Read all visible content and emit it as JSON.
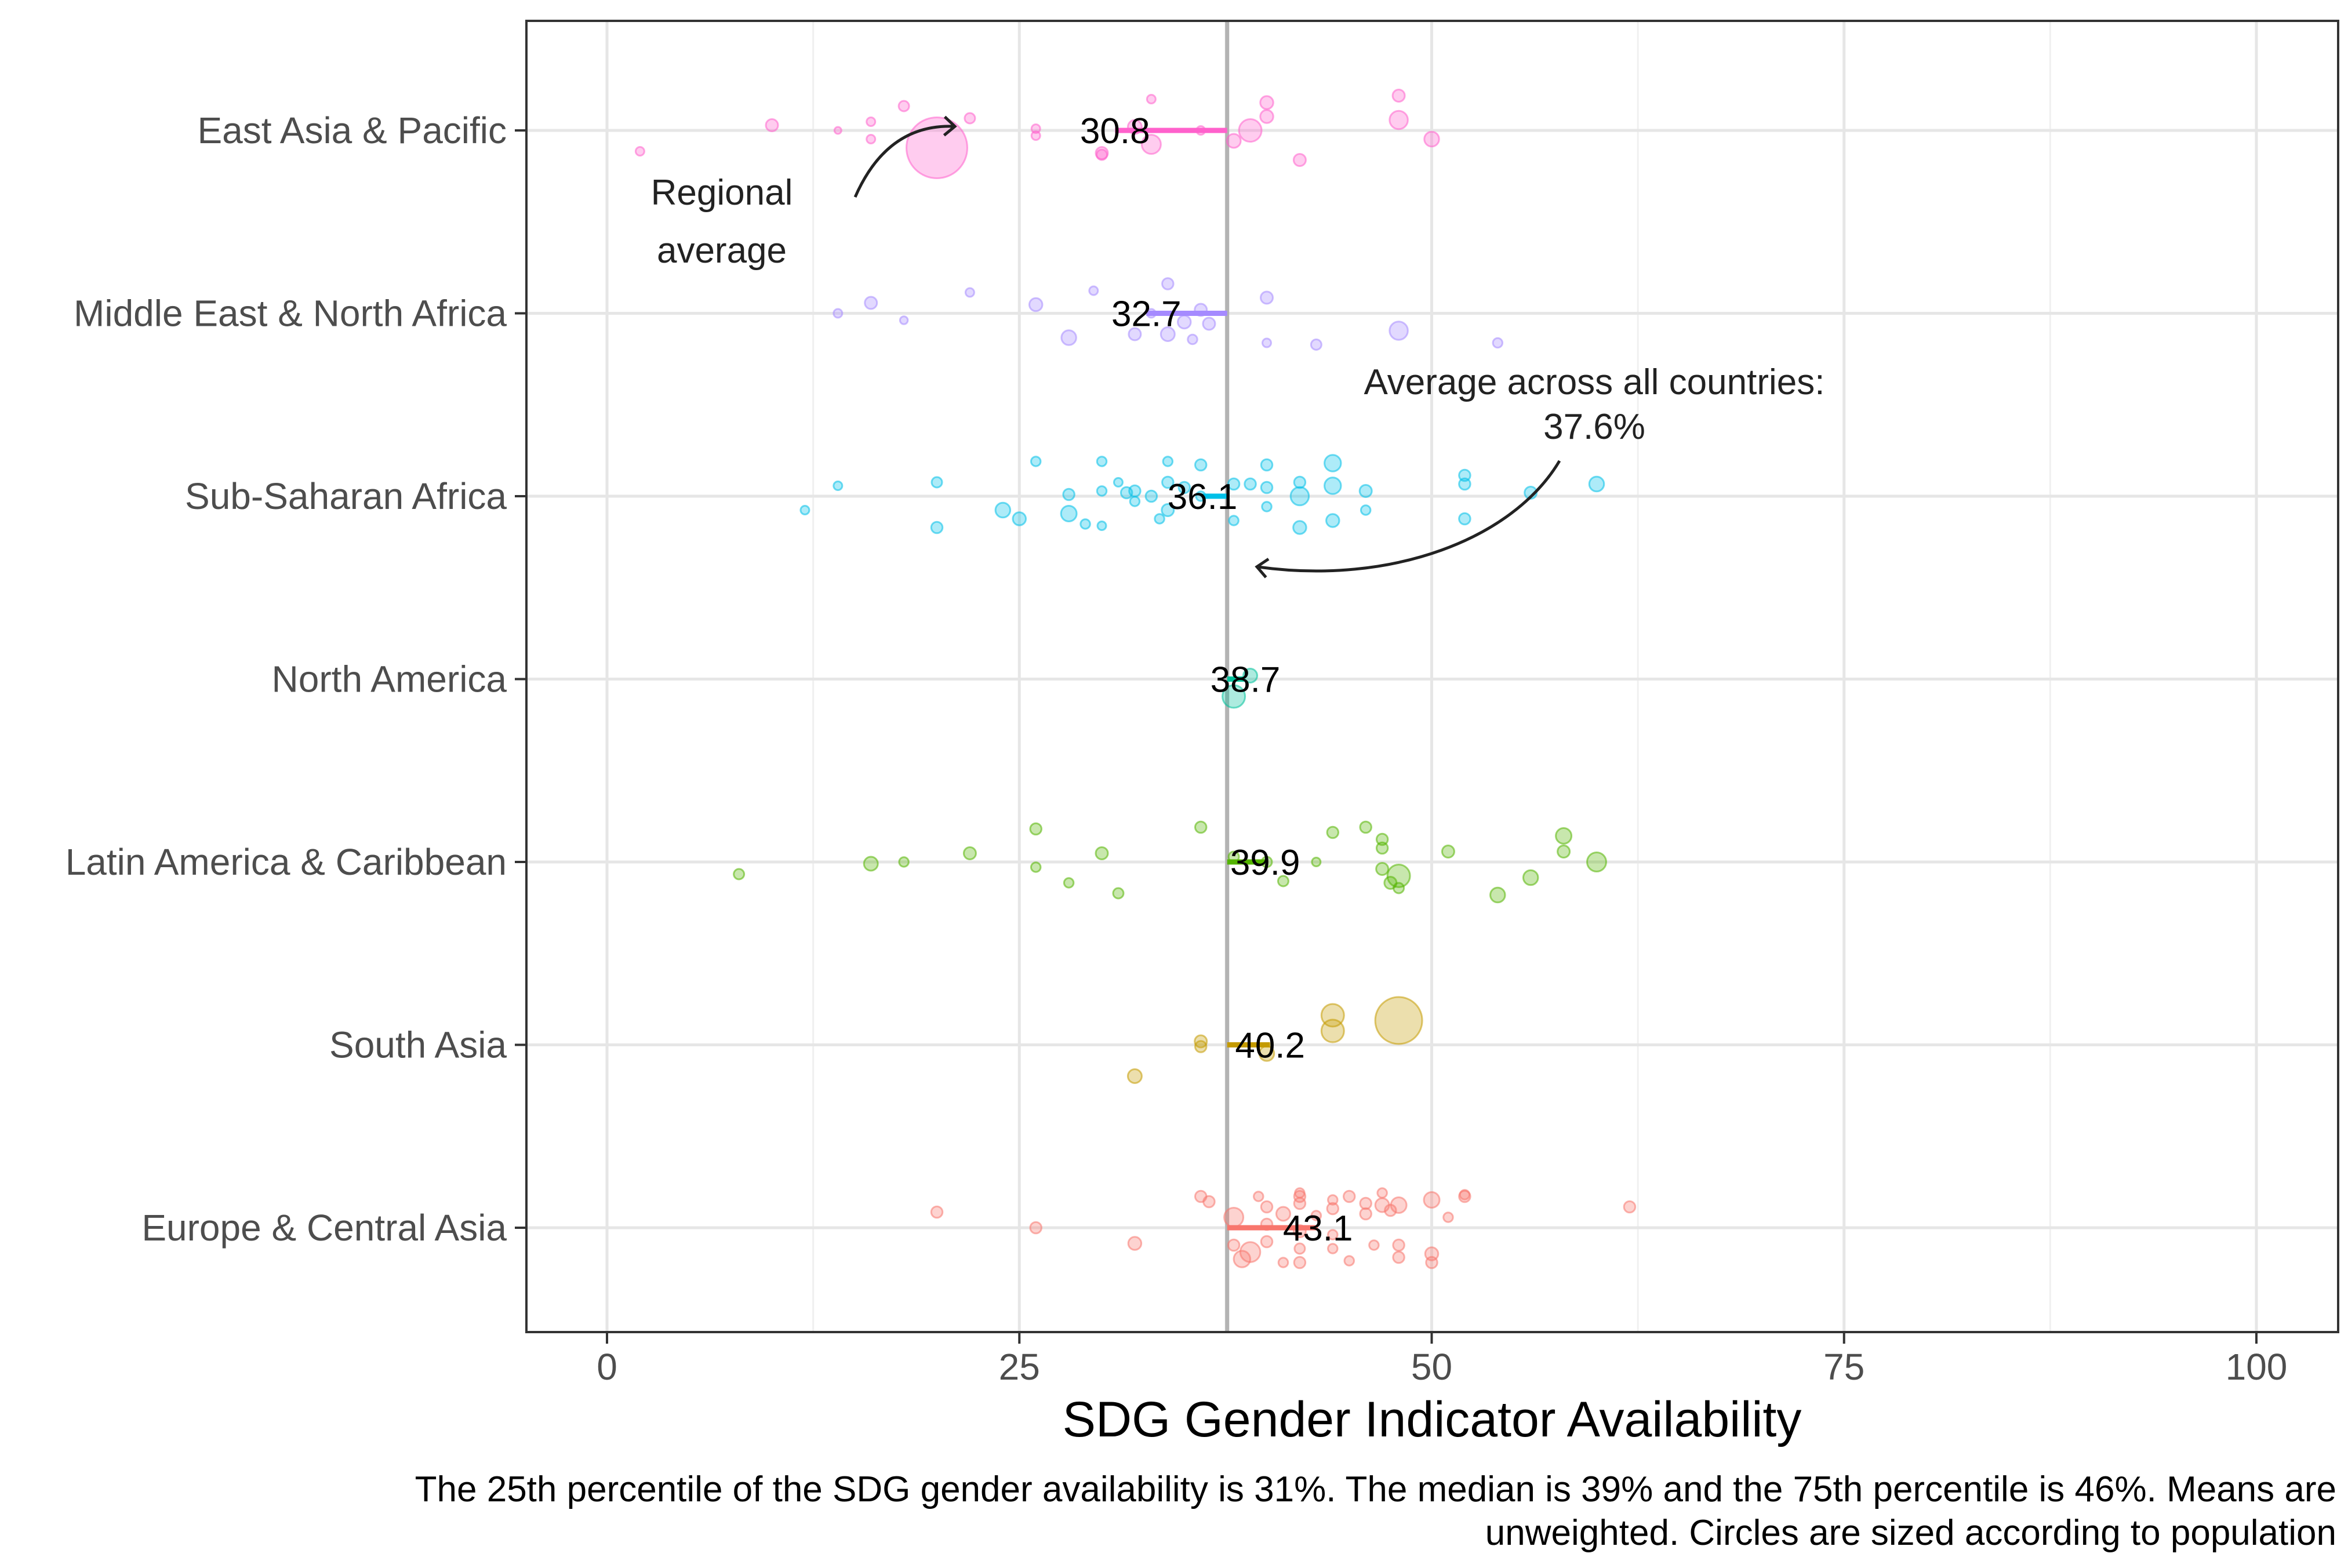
{
  "chart_data": {
    "type": "scatter",
    "xlabel": "SDG Gender Indicator Availability",
    "ylabel": "",
    "xlim": [
      -5,
      105
    ],
    "x_ticks": [
      0,
      25,
      50,
      75,
      100
    ],
    "x_tick_labels": [
      "0",
      "25",
      "50",
      "75",
      "100"
    ],
    "categories": [
      "East Asia & Pacific",
      "Middle East & North Africa",
      "Sub-Saharan Africa",
      "North America",
      "Latin America & Caribbean",
      "South Asia",
      "Europe & Central Asia"
    ],
    "overall_average": 37.6,
    "grid": true,
    "legend": "none",
    "colors": {
      "East Asia & Pacific": "#FF61CC",
      "Middle East & North Africa": "#A58AFF",
      "Sub-Saharan Africa": "#00C0E8",
      "North America": "#00C19A",
      "Latin America & Caribbean": "#53B400",
      "South Asia": "#C49A00",
      "Europe & Central Asia": "#F8766D",
      "reference_line": "#B3B3B3"
    },
    "series": [
      {
        "name": "East Asia & Pacific",
        "mean": 30.8,
        "mean_label": "30.8",
        "points": [
          [
            2,
            -0.12,
            1
          ],
          [
            10,
            0.03,
            1.4
          ],
          [
            14,
            0.0,
            0.8
          ],
          [
            16,
            -0.05,
            1
          ],
          [
            16,
            0.05,
            1
          ],
          [
            18,
            0.14,
            1.2
          ],
          [
            20,
            -0.1,
            7
          ],
          [
            22,
            0.07,
            1.2
          ],
          [
            26,
            -0.03,
            1
          ],
          [
            26,
            0.01,
            1
          ],
          [
            30,
            -0.13,
            1.4
          ],
          [
            30,
            -0.14,
            1.2
          ],
          [
            32,
            0.02,
            1.6
          ],
          [
            33,
            -0.08,
            2.2
          ],
          [
            33,
            0.18,
            1
          ],
          [
            36,
            0.0,
            1
          ],
          [
            38,
            -0.06,
            1.6
          ],
          [
            39,
            0.0,
            2.6
          ],
          [
            40,
            0.08,
            1.5
          ],
          [
            40,
            0.16,
            1.5
          ],
          [
            42,
            -0.17,
            1.4
          ],
          [
            48,
            0.06,
            2.1
          ],
          [
            48,
            0.2,
            1.4
          ],
          [
            50,
            -0.05,
            1.7
          ]
        ]
      },
      {
        "name": "Middle East & North Africa",
        "mean": 32.7,
        "mean_label": "32.7",
        "points": [
          [
            14,
            0.0,
            1
          ],
          [
            16,
            0.06,
            1.4
          ],
          [
            18,
            -0.04,
            0.9
          ],
          [
            22,
            0.12,
            1
          ],
          [
            26,
            0.05,
            1.5
          ],
          [
            28,
            -0.14,
            1.7
          ],
          [
            29.5,
            0.13,
            1
          ],
          [
            32,
            -0.12,
            1.4
          ],
          [
            33,
            0.0,
            1
          ],
          [
            34,
            0.17,
            1.3
          ],
          [
            34,
            -0.12,
            1.6
          ],
          [
            35,
            -0.05,
            1.5
          ],
          [
            35.5,
            -0.15,
            1.1
          ],
          [
            36,
            0.02,
            1.4
          ],
          [
            36.5,
            -0.06,
            1.4
          ],
          [
            40,
            0.09,
            1.4
          ],
          [
            40,
            -0.17,
            1
          ],
          [
            43,
            -0.18,
            1.2
          ],
          [
            48,
            -0.1,
            2.1
          ],
          [
            54,
            -0.17,
            1.1
          ]
        ]
      },
      {
        "name": "Sub-Saharan Africa",
        "mean": 36.1,
        "mean_label": "36.1",
        "points": [
          [
            12,
            -0.08,
            1
          ],
          [
            14,
            0.06,
            1
          ],
          [
            20,
            0.08,
            1.2
          ],
          [
            20,
            -0.18,
            1.3
          ],
          [
            24,
            -0.08,
            1.7
          ],
          [
            25,
            -0.13,
            1.5
          ],
          [
            26,
            0.2,
            1.1
          ],
          [
            28,
            0.01,
            1.3
          ],
          [
            28,
            -0.1,
            1.8
          ],
          [
            29,
            -0.16,
            1.1
          ],
          [
            30,
            0.2,
            1.1
          ],
          [
            30,
            0.03,
            1.1
          ],
          [
            30,
            -0.17,
            1
          ],
          [
            31,
            0.08,
            1
          ],
          [
            31.5,
            0.02,
            1.3
          ],
          [
            32,
            0.03,
            1.3
          ],
          [
            32,
            -0.03,
            1.1
          ],
          [
            33,
            0.0,
            1.3
          ],
          [
            33.5,
            -0.13,
            1.1
          ],
          [
            34,
            0.08,
            1.3
          ],
          [
            34,
            -0.08,
            1.4
          ],
          [
            34,
            0.2,
            1.1
          ],
          [
            35,
            0.05,
            1.3
          ],
          [
            36,
            0.18,
            1.3
          ],
          [
            36,
            0.0,
            1.1
          ],
          [
            38,
            0.07,
            1.3
          ],
          [
            38,
            -0.14,
            1.1
          ],
          [
            39,
            0.07,
            1.3
          ],
          [
            40,
            0.18,
            1.3
          ],
          [
            40,
            0.05,
            1.3
          ],
          [
            40,
            -0.06,
            1.1
          ],
          [
            42,
            0.0,
            2.1
          ],
          [
            42,
            0.08,
            1.3
          ],
          [
            42,
            -0.18,
            1.5
          ],
          [
            44,
            0.19,
            1.9
          ],
          [
            44,
            0.06,
            1.9
          ],
          [
            44,
            -0.14,
            1.5
          ],
          [
            46,
            0.03,
            1.4
          ],
          [
            46,
            -0.08,
            1.1
          ],
          [
            52,
            0.12,
            1.3
          ],
          [
            52,
            0.07,
            1.3
          ],
          [
            52,
            -0.13,
            1.3
          ],
          [
            56,
            0.02,
            1.4
          ],
          [
            60,
            0.07,
            1.7
          ]
        ]
      },
      {
        "name": "North America",
        "mean": 38.7,
        "mean_label": "38.7",
        "points": [
          [
            38,
            -0.1,
            2.6
          ],
          [
            39,
            0.02,
            1.6
          ]
        ]
      },
      {
        "name": "Latin America & Caribbean",
        "mean": 39.9,
        "mean_label": "39.9",
        "points": [
          [
            8,
            -0.07,
            1.2
          ],
          [
            16,
            -0.01,
            1.6
          ],
          [
            18,
            0.0,
            1.1
          ],
          [
            22,
            0.05,
            1.4
          ],
          [
            26,
            0.19,
            1.3
          ],
          [
            26,
            -0.03,
            1.1
          ],
          [
            28,
            -0.12,
            1.1
          ],
          [
            30,
            0.05,
            1.4
          ],
          [
            31,
            -0.18,
            1.2
          ],
          [
            36,
            0.2,
            1.3
          ],
          [
            38,
            0.03,
            1.2
          ],
          [
            40,
            0.0,
            1.2
          ],
          [
            41,
            -0.11,
            1.2
          ],
          [
            43,
            0.0,
            1
          ],
          [
            44,
            0.17,
            1.3
          ],
          [
            46,
            0.2,
            1.3
          ],
          [
            47,
            0.13,
            1.3
          ],
          [
            47,
            0.08,
            1.3
          ],
          [
            47,
            -0.04,
            1.4
          ],
          [
            47.5,
            -0.12,
            1.4
          ],
          [
            48,
            -0.15,
            1.2
          ],
          [
            48,
            -0.08,
            2.6
          ],
          [
            51,
            0.06,
            1.4
          ],
          [
            54,
            -0.19,
            1.7
          ],
          [
            56,
            -0.09,
            1.7
          ],
          [
            58,
            0.15,
            1.8
          ],
          [
            58,
            0.06,
            1.4
          ],
          [
            60,
            0.0,
            2.2
          ]
        ]
      },
      {
        "name": "South Asia",
        "mean": 40.2,
        "mean_label": "40.2",
        "points": [
          [
            32,
            -0.18,
            1.6
          ],
          [
            36,
            0.02,
            1.4
          ],
          [
            36,
            -0.01,
            1.3
          ],
          [
            40,
            -0.05,
            1.7
          ],
          [
            44,
            0.17,
            2.6
          ],
          [
            44,
            0.08,
            2.6
          ],
          [
            48,
            0.14,
            5.4
          ]
        ]
      },
      {
        "name": "Europe & Central Asia",
        "mean": 43.1,
        "mean_label": "43.1",
        "points": [
          [
            20,
            0.09,
            1.3
          ],
          [
            26,
            0.0,
            1.3
          ],
          [
            32,
            -0.09,
            1.5
          ],
          [
            36,
            0.18,
            1.3
          ],
          [
            36.5,
            0.15,
            1.3
          ],
          [
            38,
            0.06,
            2.2
          ],
          [
            38,
            -0.1,
            1.3
          ],
          [
            38.5,
            -0.18,
            1.9
          ],
          [
            39,
            -0.14,
            2.3
          ],
          [
            39.5,
            0.18,
            1.1
          ],
          [
            40,
            0.12,
            1.3
          ],
          [
            40,
            0.02,
            1.3
          ],
          [
            40,
            -0.08,
            1.3
          ],
          [
            41,
            0.08,
            1.6
          ],
          [
            41,
            -0.2,
            1.1
          ],
          [
            42,
            0.2,
            1.1
          ],
          [
            42,
            0.18,
            1.3
          ],
          [
            42,
            0.14,
            1.3
          ],
          [
            42,
            -0.02,
            1.4
          ],
          [
            42,
            -0.12,
            1.2
          ],
          [
            42,
            -0.2,
            1.3
          ],
          [
            43,
            0.07,
            1.1
          ],
          [
            44,
            0.16,
            1.1
          ],
          [
            44,
            0.11,
            1.3
          ],
          [
            44,
            -0.12,
            1.1
          ],
          [
            44,
            -0.04,
            1.1
          ],
          [
            45,
            0.18,
            1.3
          ],
          [
            45,
            -0.19,
            1.1
          ],
          [
            46,
            0.14,
            1.3
          ],
          [
            46,
            0.08,
            1.3
          ],
          [
            46.5,
            -0.1,
            1.1
          ],
          [
            47,
            0.2,
            1.1
          ],
          [
            47,
            0.13,
            1.6
          ],
          [
            47.5,
            0.1,
            1.3
          ],
          [
            48,
            0.13,
            1.8
          ],
          [
            48,
            -0.1,
            1.3
          ],
          [
            48,
            -0.17,
            1.3
          ],
          [
            50,
            0.16,
            1.8
          ],
          [
            50,
            -0.15,
            1.5
          ],
          [
            50,
            -0.2,
            1.3
          ],
          [
            51,
            0.06,
            1.1
          ],
          [
            52,
            0.18,
            1.3
          ],
          [
            52,
            0.19,
            1.1
          ],
          [
            62,
            0.12,
            1.3
          ]
        ]
      }
    ],
    "annotations": [
      {
        "line1": "Regional",
        "line2": "average"
      },
      {
        "line1": "Average across all countries:",
        "line2": "37.6%"
      }
    ],
    "caption": [
      "The 25th percentile of the SDG gender availability is 31%. The median is 39% and the 75th percentile is 46%. Means are",
      "unweighted. Circles are sized according to population"
    ]
  }
}
